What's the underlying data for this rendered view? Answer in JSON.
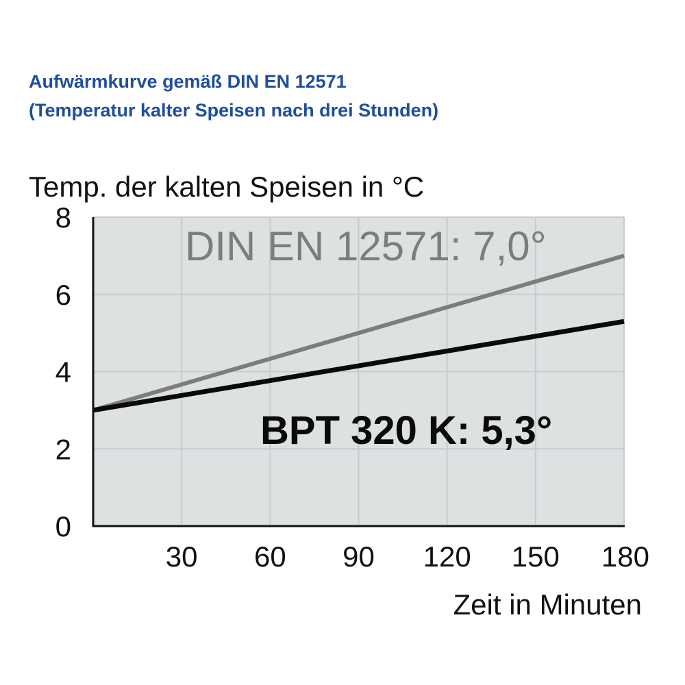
{
  "colors": {
    "title": "#1f4e9c",
    "plot_background": "#dde1e2",
    "grid": "#c7cbcc",
    "axis": "#111111",
    "text": "#111111"
  },
  "chart_data": {
    "type": "line",
    "title": "Aufwärmkurve gemäß DIN EN 12571",
    "subtitle": "(Temperatur kalter Speisen nach drei Stunden)",
    "ylabel": "Temp. der kalten Speisen in °C",
    "xlabel": "Zeit in Minuten",
    "xlim": [
      0,
      180
    ],
    "ylim": [
      0,
      8
    ],
    "x_ticks": [
      30,
      60,
      90,
      120,
      150,
      180
    ],
    "y_ticks": [
      0,
      2,
      4,
      6,
      8
    ],
    "grid": true,
    "series": [
      {
        "name": "DIN EN 12571: 7,0°",
        "color": "#7d7d7d",
        "x": [
          0,
          180
        ],
        "y": [
          3.0,
          7.0
        ]
      },
      {
        "name": "BPT 320 K: 5,3°",
        "color": "#0a0a0a",
        "x": [
          0,
          180
        ],
        "y": [
          3.0,
          5.3
        ]
      }
    ]
  }
}
